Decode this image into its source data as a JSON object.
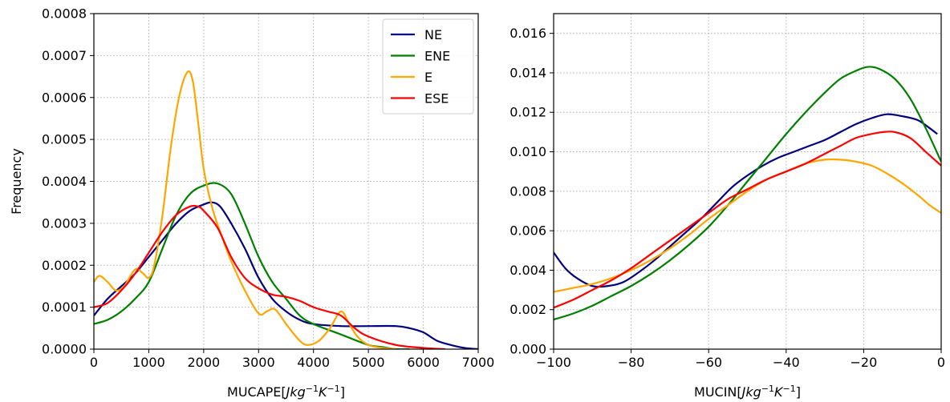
{
  "chart_data": [
    {
      "type": "line",
      "xlabel": "MUCAPE[Jkg⁻¹K⁻¹]",
      "ylabel": "Frequency",
      "xlim": [
        0,
        7000
      ],
      "ylim": [
        0,
        0.0008
      ],
      "grid": true,
      "legend_position": "top-right",
      "x_ticks": [
        "0",
        "1000",
        "2000",
        "3000",
        "4000",
        "5000",
        "6000",
        "7000"
      ],
      "y_ticks": [
        "0.0000",
        "0.0001",
        "0.0002",
        "0.0003",
        "0.0004",
        "0.0005",
        "0.0006",
        "0.0007",
        "0.0008"
      ],
      "series": [
        {
          "name": "NE",
          "color": "#00007f",
          "points": [
            [
              0,
              8e-05
            ],
            [
              250,
              0.00012
            ],
            [
              500,
              0.00015
            ],
            [
              750,
              0.00018
            ],
            [
              1000,
              0.00022
            ],
            [
              1250,
              0.00026
            ],
            [
              1500,
              0.0003
            ],
            [
              1750,
              0.00033
            ],
            [
              2000,
              0.000345
            ],
            [
              2150,
              0.00035
            ],
            [
              2300,
              0.00034
            ],
            [
              2500,
              0.0003
            ],
            [
              2750,
              0.00024
            ],
            [
              3000,
              0.00017
            ],
            [
              3250,
              0.00012
            ],
            [
              3500,
              9e-05
            ],
            [
              3750,
              7e-05
            ],
            [
              4000,
              6e-05
            ],
            [
              4500,
              5.5e-05
            ],
            [
              5000,
              5.5e-05
            ],
            [
              5500,
              5.5e-05
            ],
            [
              5750,
              5e-05
            ],
            [
              6000,
              4e-05
            ],
            [
              6250,
              2e-05
            ],
            [
              6500,
              1e-05
            ],
            [
              6750,
              3e-06
            ],
            [
              7000,
              0.0
            ]
          ]
        },
        {
          "name": "ENE",
          "color": "#007f00",
          "points": [
            [
              0,
              6e-05
            ],
            [
              250,
              7e-05
            ],
            [
              500,
              9e-05
            ],
            [
              750,
              0.00012
            ],
            [
              1000,
              0.00016
            ],
            [
              1250,
              0.00024
            ],
            [
              1500,
              0.00032
            ],
            [
              1750,
              0.00037
            ],
            [
              2000,
              0.00039
            ],
            [
              2250,
              0.000395
            ],
            [
              2500,
              0.00037
            ],
            [
              2750,
              0.0003
            ],
            [
              3000,
              0.00022
            ],
            [
              3250,
              0.00016
            ],
            [
              3500,
              0.00012
            ],
            [
              3750,
              8e-05
            ],
            [
              4000,
              6e-05
            ],
            [
              4500,
              3.5e-05
            ],
            [
              5000,
              1e-05
            ],
            [
              5250,
              5e-06
            ],
            [
              5500,
              0.0
            ],
            [
              5750,
              0.0
            ]
          ]
        },
        {
          "name": "E",
          "color": "#ffa500",
          "points": [
            [
              0,
              0.00016
            ],
            [
              100,
              0.000175
            ],
            [
              250,
              0.00016
            ],
            [
              400,
              0.00014
            ],
            [
              550,
              0.00015
            ],
            [
              750,
              0.00019
            ],
            [
              900,
              0.00018
            ],
            [
              1000,
              0.00017
            ],
            [
              1100,
              0.0002
            ],
            [
              1250,
              0.00032
            ],
            [
              1400,
              0.00048
            ],
            [
              1550,
              0.0006
            ],
            [
              1700,
              0.00066
            ],
            [
              1800,
              0.00064
            ],
            [
              1900,
              0.00054
            ],
            [
              2000,
              0.00043
            ],
            [
              2150,
              0.00034
            ],
            [
              2300,
              0.00028
            ],
            [
              2500,
              0.00021
            ],
            [
              2750,
              0.00014
            ],
            [
              3000,
              8.5e-05
            ],
            [
              3150,
              9e-05
            ],
            [
              3300,
              9.5e-05
            ],
            [
              3500,
              6e-05
            ],
            [
              3750,
              2e-05
            ],
            [
              3900,
              1e-05
            ],
            [
              4100,
              2e-05
            ],
            [
              4300,
              5e-05
            ],
            [
              4500,
              9e-05
            ],
            [
              4650,
              6e-05
            ],
            [
              4800,
              3e-05
            ],
            [
              5000,
              1e-05
            ],
            [
              5250,
              3e-06
            ],
            [
              5500,
              0.0
            ]
          ]
        },
        {
          "name": "ESE",
          "color": "#ff0000",
          "points": [
            [
              0,
              0.0001
            ],
            [
              250,
              0.00011
            ],
            [
              500,
              0.00014
            ],
            [
              750,
              0.00018
            ],
            [
              1000,
              0.00023
            ],
            [
              1250,
              0.00028
            ],
            [
              1500,
              0.00032
            ],
            [
              1750,
              0.00034
            ],
            [
              1900,
              0.00034
            ],
            [
              2000,
              0.00033
            ],
            [
              2250,
              0.00029
            ],
            [
              2500,
              0.00022
            ],
            [
              2750,
              0.00017
            ],
            [
              3000,
              0.000145
            ],
            [
              3250,
              0.00013
            ],
            [
              3500,
              0.000125
            ],
            [
              3750,
              0.000115
            ],
            [
              4000,
              0.0001
            ],
            [
              4250,
              9e-05
            ],
            [
              4500,
              8e-05
            ],
            [
              4750,
              5e-05
            ],
            [
              5000,
              3e-05
            ],
            [
              5500,
              1e-05
            ],
            [
              6000,
              3e-06
            ],
            [
              6400,
              0.0
            ]
          ]
        }
      ]
    },
    {
      "type": "line",
      "xlabel": "MUCIN[Jkg⁻¹K⁻¹]",
      "ylabel": "",
      "xlim": [
        -100,
        0
      ],
      "ylim": [
        0,
        0.017
      ],
      "grid": true,
      "x_ticks": [
        "−100",
        "−80",
        "−60",
        "−40",
        "−20",
        "0"
      ],
      "y_ticks": [
        "0.000",
        "0.002",
        "0.004",
        "0.006",
        "0.008",
        "0.010",
        "0.012",
        "0.014",
        "0.016"
      ],
      "series": [
        {
          "name": "NE",
          "color": "#00007f",
          "points": [
            [
              -100,
              0.0049
            ],
            [
              -97,
              0.0041
            ],
            [
              -94,
              0.0036
            ],
            [
              -90,
              0.0032
            ],
            [
              -86,
              0.0032
            ],
            [
              -82,
              0.0034
            ],
            [
              -78,
              0.0039
            ],
            [
              -74,
              0.0045
            ],
            [
              -70,
              0.0052
            ],
            [
              -66,
              0.0059
            ],
            [
              -62,
              0.0066
            ],
            [
              -58,
              0.0074
            ],
            [
              -54,
              0.0082
            ],
            [
              -50,
              0.0088
            ],
            [
              -46,
              0.0093
            ],
            [
              -42,
              0.0097
            ],
            [
              -38,
              0.01
            ],
            [
              -34,
              0.0103
            ],
            [
              -30,
              0.0106
            ],
            [
              -26,
              0.011
            ],
            [
              -22,
              0.0114
            ],
            [
              -18,
              0.0117
            ],
            [
              -14,
              0.0119
            ],
            [
              -10,
              0.0118
            ],
            [
              -6,
              0.0116
            ],
            [
              -3,
              0.0112
            ],
            [
              -1,
              0.0109
            ]
          ]
        },
        {
          "name": "ENE",
          "color": "#007f00",
          "points": [
            [
              -100,
              0.0015
            ],
            [
              -95,
              0.0018
            ],
            [
              -90,
              0.0022
            ],
            [
              -85,
              0.0027
            ],
            [
              -80,
              0.0032
            ],
            [
              -75,
              0.0038
            ],
            [
              -70,
              0.0045
            ],
            [
              -65,
              0.0053
            ],
            [
              -60,
              0.0062
            ],
            [
              -55,
              0.0073
            ],
            [
              -50,
              0.0085
            ],
            [
              -45,
              0.0097
            ],
            [
              -40,
              0.0109
            ],
            [
              -35,
              0.012
            ],
            [
              -30,
              0.013
            ],
            [
              -26,
              0.0137
            ],
            [
              -22,
              0.0141
            ],
            [
              -19,
              0.0143
            ],
            [
              -16,
              0.0142
            ],
            [
              -12,
              0.0137
            ],
            [
              -8,
              0.0127
            ],
            [
              -4,
              0.0112
            ],
            [
              0,
              0.0095
            ]
          ]
        },
        {
          "name": "E",
          "color": "#ffa500",
          "points": [
            [
              -100,
              0.0029
            ],
            [
              -95,
              0.0031
            ],
            [
              -90,
              0.0033
            ],
            [
              -85,
              0.0036
            ],
            [
              -80,
              0.004
            ],
            [
              -75,
              0.0045
            ],
            [
              -70,
              0.0051
            ],
            [
              -65,
              0.0058
            ],
            [
              -60,
              0.0066
            ],
            [
              -55,
              0.0073
            ],
            [
              -50,
              0.008
            ],
            [
              -45,
              0.0086
            ],
            [
              -40,
              0.009
            ],
            [
              -35,
              0.0094
            ],
            [
              -30,
              0.0096
            ],
            [
              -26,
              0.0096
            ],
            [
              -22,
              0.0095
            ],
            [
              -18,
              0.0093
            ],
            [
              -14,
              0.0089
            ],
            [
              -10,
              0.0084
            ],
            [
              -6,
              0.0078
            ],
            [
              -3,
              0.0073
            ],
            [
              0,
              0.0069
            ]
          ]
        },
        {
          "name": "ESE",
          "color": "#ff0000",
          "points": [
            [
              -100,
              0.0021
            ],
            [
              -95,
              0.0025
            ],
            [
              -90,
              0.003
            ],
            [
              -85,
              0.0035
            ],
            [
              -80,
              0.0041
            ],
            [
              -75,
              0.0048
            ],
            [
              -70,
              0.0055
            ],
            [
              -65,
              0.0062
            ],
            [
              -60,
              0.0069
            ],
            [
              -55,
              0.0076
            ],
            [
              -50,
              0.0081
            ],
            [
              -45,
              0.0086
            ],
            [
              -40,
              0.009
            ],
            [
              -35,
              0.0094
            ],
            [
              -30,
              0.0099
            ],
            [
              -26,
              0.0103
            ],
            [
              -22,
              0.0107
            ],
            [
              -18,
              0.0109
            ],
            [
              -15,
              0.011
            ],
            [
              -12,
              0.011
            ],
            [
              -8,
              0.0107
            ],
            [
              -4,
              0.01
            ],
            [
              0,
              0.0093
            ]
          ]
        }
      ]
    }
  ]
}
